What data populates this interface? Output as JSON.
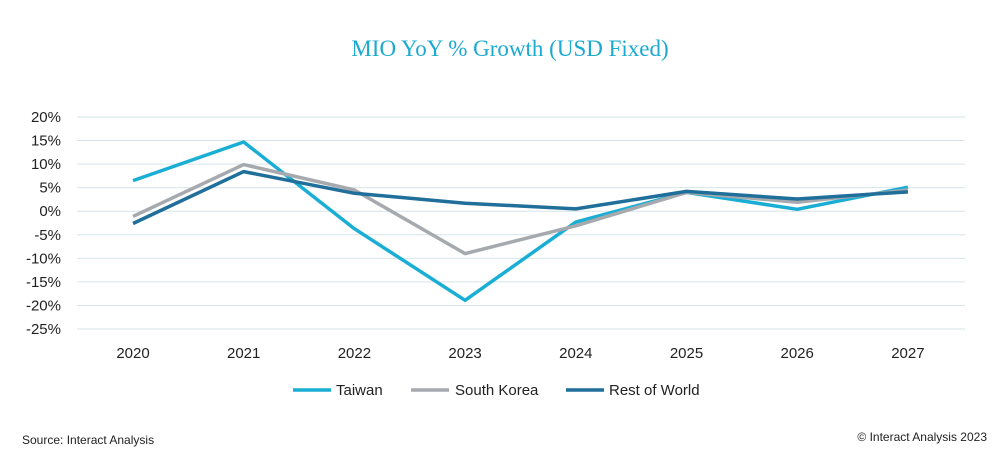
{
  "chart_data": {
    "type": "line",
    "title": "MIO YoY % Growth (USD Fixed)",
    "xlabel": "",
    "ylabel": "",
    "categories": [
      "2020",
      "2021",
      "2022",
      "2023",
      "2024",
      "2025",
      "2026",
      "2027"
    ],
    "ylim": [
      -25,
      20
    ],
    "yticks": [
      20,
      15,
      10,
      5,
      0,
      -5,
      -10,
      -15,
      -20,
      -25
    ],
    "ytick_labels": [
      "20%",
      "15%",
      "10%",
      "5%",
      "0%",
      "-5%",
      "-10%",
      "-15%",
      "-20%",
      "-25%"
    ],
    "grid": true,
    "legend_position": "bottom",
    "series": [
      {
        "name": "Taiwan",
        "color": "#1aaed4",
        "values": [
          6.5,
          14.7,
          -3.7,
          -18.9,
          -2.3,
          4.0,
          0.4,
          5.1
        ]
      },
      {
        "name": "South Korea",
        "color": "#a6a9ad",
        "values": [
          -1.1,
          9.9,
          4.5,
          -9.0,
          -3.1,
          4.0,
          1.9,
          4.5
        ]
      },
      {
        "name": "Rest of World",
        "color": "#1f6f9a",
        "values": [
          -2.6,
          8.4,
          3.8,
          1.7,
          0.5,
          4.2,
          2.6,
          4.1
        ]
      }
    ]
  },
  "footer": {
    "source": "Source: Interact Analysis",
    "copyright": "© Interact Analysis 2023"
  }
}
